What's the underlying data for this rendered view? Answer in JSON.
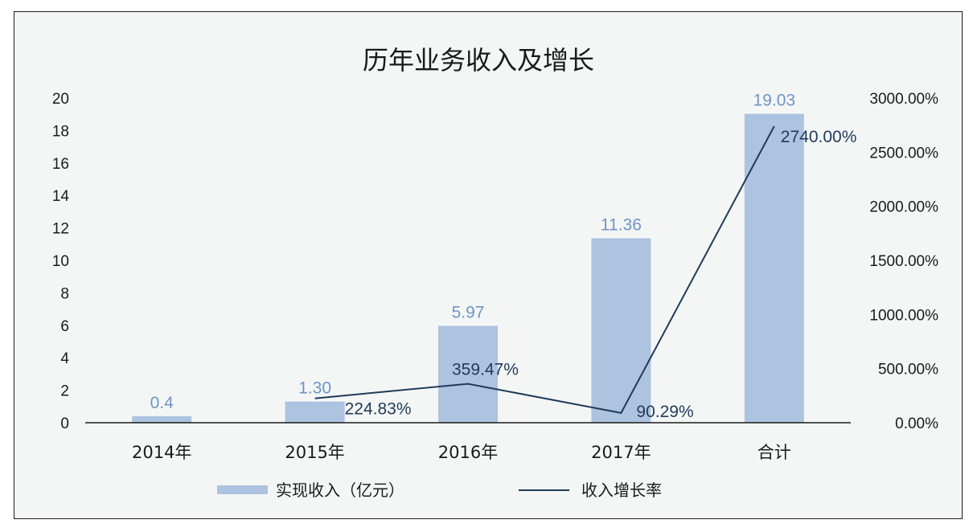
{
  "chart_data": {
    "type": "bar+line",
    "title": "历年业务收入及增长",
    "categories": [
      "2014年",
      "2015年",
      "2016年",
      "2017年",
      "合计"
    ],
    "series": [
      {
        "name": "实现收入（亿元）",
        "type": "bar",
        "axis": "left",
        "values": [
          0.4,
          1.3,
          5.97,
          11.36,
          19.03
        ],
        "labels": [
          "0.4",
          "1.30",
          "5.97",
          "11.36",
          "19.03"
        ]
      },
      {
        "name": "收入增长率",
        "type": "line",
        "axis": "right",
        "values": [
          null,
          224.83,
          359.47,
          90.29,
          2740.0
        ],
        "labels": [
          "",
          "224.83%",
          "359.47%",
          "90.29%",
          "2740.00%"
        ]
      }
    ],
    "y_left": {
      "min": 0,
      "max": 20,
      "ticks": [
        "0",
        "2",
        "4",
        "6",
        "8",
        "10",
        "12",
        "14",
        "16",
        "18",
        "20"
      ]
    },
    "y_right": {
      "min": 0,
      "max": 3000,
      "ticks": [
        "0.00%",
        "500.00%",
        "1000.00%",
        "1500.00%",
        "2000.00%",
        "2500.00%",
        "3000.00%"
      ]
    },
    "grid": false,
    "legend_position": "bottom",
    "colors": {
      "bar": "#adc3df",
      "bar_label": "#6f95c4",
      "line": "#1f3b5a",
      "line_label": "#1f3b5a"
    }
  }
}
